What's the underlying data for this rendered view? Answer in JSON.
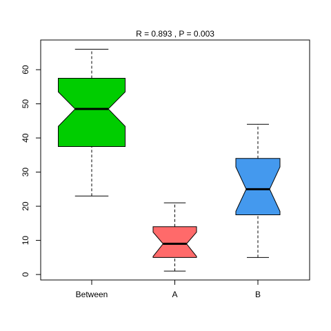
{
  "chart_data": {
    "type": "boxplot",
    "title": "R =  0.893 ,  P =  0.003",
    "categories": [
      "Between",
      "A",
      "B"
    ],
    "colors": [
      "#00cd00",
      "#ff6a6a",
      "#4499ee"
    ],
    "boxes": [
      {
        "whisker_low": 23,
        "q1": 37.5,
        "notch_low": 43.4,
        "median": 48.5,
        "notch_high": 53.5,
        "q3": 57.5,
        "whisker_high": 66
      },
      {
        "whisker_low": 1,
        "q1": 5,
        "notch_low": 5.3,
        "median": 9,
        "notch_high": 12.4,
        "q3": 14,
        "whisker_high": 21
      },
      {
        "whisker_low": 5,
        "q1": 17.5,
        "notch_low": 18.5,
        "median": 25,
        "notch_high": 31.5,
        "q3": 34,
        "whisker_high": 44
      }
    ],
    "ylim": [
      -1.6,
      68.7
    ],
    "yticks": [
      0,
      10,
      20,
      30,
      40,
      50,
      60
    ]
  }
}
